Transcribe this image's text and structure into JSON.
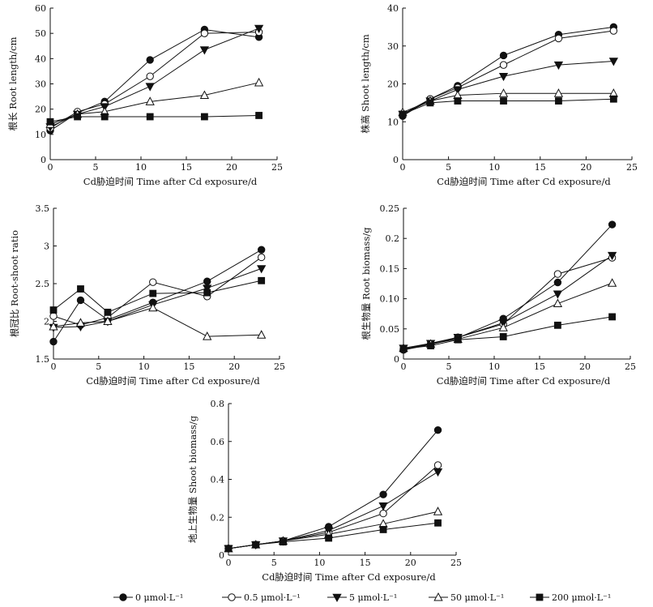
{
  "chart_data": [
    {
      "type": "line",
      "xlabel": "Cd胁迫时间 Time after Cd exposure/d",
      "ylabel": "根长 Root length/cm",
      "xlim": [
        0,
        25
      ],
      "ylim": [
        0,
        60
      ],
      "xticks": [
        0,
        5,
        10,
        15,
        20,
        25
      ],
      "yticks": [
        0,
        10,
        20,
        30,
        40,
        50,
        60
      ],
      "x": [
        0,
        3,
        6,
        11,
        17,
        23
      ],
      "series": [
        {
          "name": "0 μmol·L⁻¹",
          "marker": "filled-circle",
          "values": [
            11.5,
            18.5,
            23.0,
            39.5,
            51.5,
            48.5
          ]
        },
        {
          "name": "0.5 μmol·L⁻¹",
          "marker": "open-circle",
          "values": [
            12.5,
            19.0,
            22.0,
            33.0,
            50.0,
            50.5
          ]
        },
        {
          "name": "5 μmol·L⁻¹",
          "marker": "filled-triangle",
          "values": [
            13.0,
            18.0,
            21.0,
            29.0,
            43.5,
            52.0
          ]
        },
        {
          "name": "50 μmol·L⁻¹",
          "marker": "open-triangle",
          "values": [
            14.0,
            18.0,
            19.0,
            23.0,
            25.5,
            30.5
          ]
        },
        {
          "name": "200 μmol·L⁻¹",
          "marker": "filled-square",
          "values": [
            15.0,
            17.0,
            17.0,
            17.0,
            17.0,
            17.5
          ]
        }
      ]
    },
    {
      "type": "line",
      "xlabel": "Cd胁迫时间 Time after Cd exposure/d",
      "ylabel": "株高 Shoot length/cm",
      "xlim": [
        0,
        25
      ],
      "ylim": [
        0,
        40
      ],
      "xticks": [
        0,
        5,
        10,
        15,
        20,
        25
      ],
      "yticks": [
        0,
        10,
        20,
        30,
        40
      ],
      "x": [
        0,
        3,
        6,
        11,
        17,
        23
      ],
      "series": [
        {
          "name": "0 μmol·L⁻¹",
          "marker": "filled-circle",
          "values": [
            11.5,
            16.0,
            19.5,
            27.5,
            33.0,
            35.0
          ]
        },
        {
          "name": "0.5 μmol·L⁻¹",
          "marker": "open-circle",
          "values": [
            12.0,
            16.0,
            19.0,
            25.0,
            32.0,
            34.0
          ]
        },
        {
          "name": "5 μmol·L⁻¹",
          "marker": "filled-triangle",
          "values": [
            12.0,
            15.5,
            18.5,
            22.0,
            25.0,
            26.0
          ]
        },
        {
          "name": "50 μmol·L⁻¹",
          "marker": "open-triangle",
          "values": [
            12.5,
            15.5,
            17.0,
            17.5,
            17.5,
            17.5
          ]
        },
        {
          "name": "200 μmol·L⁻¹",
          "marker": "filled-square",
          "values": [
            12.0,
            15.0,
            15.5,
            15.5,
            15.5,
            16.0
          ]
        }
      ]
    },
    {
      "type": "line",
      "xlabel": "Cd胁迫时间 Time after Cd exposure/d",
      "ylabel": "根冠比 Root-shoot ratio",
      "xlim": [
        0,
        25
      ],
      "ylim": [
        1.5,
        3.5
      ],
      "xticks": [
        0,
        5,
        10,
        15,
        20,
        25
      ],
      "yticks": [
        1.5,
        2.0,
        2.5,
        3.0,
        3.5
      ],
      "x": [
        0,
        3,
        6,
        11,
        17,
        23
      ],
      "series": [
        {
          "name": "0 μmol·L⁻¹",
          "marker": "filled-circle",
          "values": [
            1.73,
            2.28,
            2.02,
            2.25,
            2.53,
            2.95
          ]
        },
        {
          "name": "0.5 μmol·L⁻¹",
          "marker": "open-circle",
          "values": [
            2.07,
            1.95,
            2.05,
            2.52,
            2.33,
            2.85
          ]
        },
        {
          "name": "5 μmol·L⁻¹",
          "marker": "filled-triangle",
          "values": [
            1.92,
            1.93,
            2.0,
            2.22,
            2.44,
            2.7
          ]
        },
        {
          "name": "50 μmol·L⁻¹",
          "marker": "open-triangle",
          "values": [
            1.93,
            1.98,
            2.0,
            2.18,
            1.8,
            1.82
          ]
        },
        {
          "name": "200 μmol·L⁻¹",
          "marker": "filled-square",
          "values": [
            2.15,
            2.43,
            2.12,
            2.37,
            2.38,
            2.54
          ]
        }
      ]
    },
    {
      "type": "line",
      "xlabel": "Cd胁迫时间 Time after Cd exposure/d",
      "ylabel": "根生物量 Root biomass/g",
      "xlim": [
        0,
        25
      ],
      "ylim": [
        0,
        0.25
      ],
      "xticks": [
        0,
        5,
        10,
        15,
        20,
        25
      ],
      "yticks": [
        0,
        0.05,
        0.1,
        0.15,
        0.2,
        0.25
      ],
      "ytick_labels": [
        "0",
        "0.05",
        "0.10",
        "0.15",
        "0.2",
        "0.25"
      ],
      "x": [
        0,
        3,
        6,
        11,
        17,
        23
      ],
      "series": [
        {
          "name": "0 μmol·L⁻¹",
          "marker": "filled-circle",
          "values": [
            0.015,
            0.024,
            0.035,
            0.067,
            0.127,
            0.223
          ]
        },
        {
          "name": "0.5 μmol·L⁻¹",
          "marker": "open-circle",
          "values": [
            0.016,
            0.025,
            0.036,
            0.058,
            0.141,
            0.168
          ]
        },
        {
          "name": "5 μmol·L⁻¹",
          "marker": "filled-triangle",
          "values": [
            0.018,
            0.026,
            0.036,
            0.06,
            0.108,
            0.172
          ]
        },
        {
          "name": "50 μmol·L⁻¹",
          "marker": "open-triangle",
          "values": [
            0.018,
            0.025,
            0.033,
            0.052,
            0.092,
            0.126
          ]
        },
        {
          "name": "200 μmol·L⁻¹",
          "marker": "filled-square",
          "values": [
            0.017,
            0.022,
            0.032,
            0.037,
            0.056,
            0.07
          ]
        }
      ]
    },
    {
      "type": "line",
      "xlabel": "Cd胁迫时间 Time after Cd exposure/d",
      "ylabel": "地上生物量 Shoot biomass/g",
      "xlim": [
        0,
        25
      ],
      "ylim": [
        0,
        0.8
      ],
      "xticks": [
        0,
        5,
        10,
        15,
        20,
        25
      ],
      "yticks": [
        0,
        0.2,
        0.4,
        0.6,
        0.8
      ],
      "x": [
        0,
        3,
        6,
        11,
        17,
        23
      ],
      "series": [
        {
          "name": "0 μmol·L⁻¹",
          "marker": "filled-circle",
          "values": [
            0.035,
            0.055,
            0.075,
            0.15,
            0.32,
            0.66
          ]
        },
        {
          "name": "0.5 μmol·L⁻¹",
          "marker": "open-circle",
          "values": [
            0.035,
            0.055,
            0.075,
            0.12,
            0.22,
            0.475
          ]
        },
        {
          "name": "5 μmol·L⁻¹",
          "marker": "filled-triangle",
          "values": [
            0.035,
            0.055,
            0.075,
            0.13,
            0.26,
            0.44
          ]
        },
        {
          "name": "50 μmol·L⁻¹",
          "marker": "open-triangle",
          "values": [
            0.035,
            0.055,
            0.075,
            0.11,
            0.165,
            0.23
          ]
        },
        {
          "name": "200 μmol·L⁻¹",
          "marker": "filled-square",
          "values": [
            0.035,
            0.055,
            0.07,
            0.09,
            0.135,
            0.17
          ]
        }
      ]
    }
  ],
  "legend": {
    "placement": "bottom",
    "entries": [
      {
        "marker": "filled-circle",
        "label": "0 μmol·L⁻¹"
      },
      {
        "marker": "open-circle",
        "label": "0.5 μmol·L⁻¹"
      },
      {
        "marker": "filled-triangle",
        "label": "5 μmol·L⁻¹"
      },
      {
        "marker": "open-triangle",
        "label": "50 μmol·L⁻¹"
      },
      {
        "marker": "filled-square",
        "label": "200 μmol·L⁻¹"
      }
    ]
  }
}
